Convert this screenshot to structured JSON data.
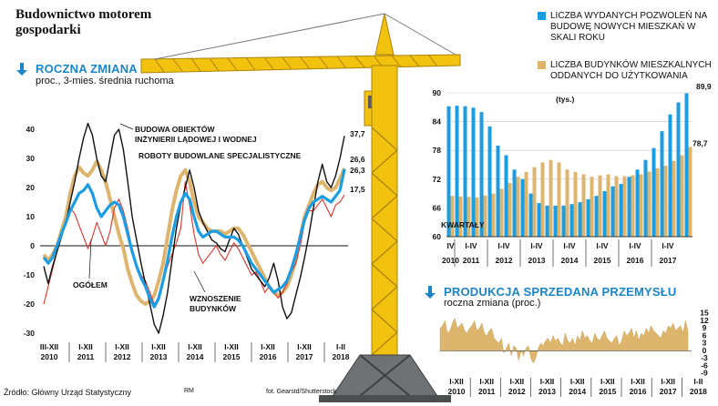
{
  "headline": "Budownictwo motorem gospodarki",
  "source": "Źródło: Główny Urząd Statystyczny",
  "author": "RM",
  "photo_credit": "fot. Gearstd/Shutterstock",
  "colors": {
    "blue": "#1b9de3",
    "gold": "#ddb56d",
    "red": "#e0322d",
    "black": "#111111",
    "accent_title": "#1a86c7"
  },
  "chart_data": [
    {
      "id": "roczna-zmiana",
      "type": "line",
      "title": "ROCZNA ZMIANA",
      "subtitle": "proc., 3-mies. średnia ruchoma",
      "ylim": [
        -30,
        45
      ],
      "y_ticks": [
        "40",
        "30",
        "20",
        "10",
        "0",
        "-10",
        "-20",
        "-30"
      ],
      "x_tick_groups": [
        {
          "range": "III-XII",
          "year": "2010"
        },
        {
          "range": "I-XII",
          "year": "2011"
        },
        {
          "range": "I-XII",
          "year": "2012"
        },
        {
          "range": "I-XII",
          "year": "2013"
        },
        {
          "range": "I-XII",
          "year": "2014"
        },
        {
          "range": "I-XII",
          "year": "2015"
        },
        {
          "range": "I-XII",
          "year": "2016"
        },
        {
          "range": "I-XII",
          "year": "2017"
        },
        {
          "range": "I-II",
          "year": "2018"
        }
      ],
      "series": [
        {
          "name": "BUDOWA OBIEKTÓW INŻYNIERII LĄDOWEJ I WODNEJ",
          "end_label": "37,7",
          "values": [
            -7,
            -13,
            -7,
            -2,
            3,
            8,
            15,
            22,
            30,
            37,
            42,
            38,
            30,
            24,
            22,
            30,
            38,
            40,
            33,
            22,
            10,
            2,
            -6,
            -13,
            -20,
            -27,
            -30,
            -24,
            -16,
            -5,
            6,
            14,
            20,
            26,
            20,
            12,
            8,
            5,
            2,
            1,
            -1,
            -2,
            2,
            6,
            4,
            0,
            -4,
            -8,
            -10,
            -12,
            -14,
            -11,
            -6,
            -12,
            -21,
            -25,
            -23,
            -17,
            -11,
            -4,
            4,
            13,
            22,
            28,
            22,
            20,
            24,
            30,
            37.7
          ]
        },
        {
          "name": "ROBOTY BUDOWLANE SPECJALISTYCZNE",
          "end_label": "26,6",
          "values": [
            -3,
            -5,
            -3,
            0,
            5,
            10,
            18,
            24,
            27,
            25,
            24,
            26,
            29,
            26,
            22,
            16,
            10,
            4,
            -1,
            -8,
            -13,
            -17,
            -19,
            -20,
            -19,
            -17,
            -12,
            -6,
            3,
            12,
            19,
            24,
            26,
            22,
            15,
            10,
            8,
            6,
            5,
            5,
            5,
            4,
            5,
            6,
            6,
            4,
            1,
            -2,
            -5,
            -8,
            -11,
            -14,
            -16,
            -17,
            -16,
            -14,
            -10,
            -5,
            3,
            10,
            14,
            18,
            21,
            22,
            20,
            19,
            20,
            23,
            26.6
          ]
        },
        {
          "name": "OGÓŁEM",
          "end_label": "26,3",
          "values": [
            -4,
            -6,
            -4,
            0,
            4,
            8,
            12,
            15,
            18,
            19,
            21,
            18,
            13,
            10,
            12,
            14,
            15,
            14,
            10,
            4,
            -2,
            -7,
            -11,
            -14,
            -18,
            -21,
            -18,
            -12,
            -5,
            3,
            10,
            15,
            18,
            16,
            10,
            5,
            3,
            4,
            5,
            5,
            4,
            3,
            3,
            3,
            2,
            0,
            -3,
            -6,
            -8,
            -10,
            -12,
            -14,
            -16,
            -15,
            -14,
            -12,
            -8,
            -3,
            3,
            9,
            13,
            15,
            16,
            17,
            16,
            15,
            17,
            19,
            26.3
          ]
        },
        {
          "name": "WZNOSZENIE BUDYNKÓW",
          "end_label": "17,5",
          "values": [
            -20,
            -14,
            -8,
            -2,
            3,
            9,
            13,
            11,
            7,
            3,
            -1,
            3,
            8,
            4,
            0,
            5,
            13,
            16,
            12,
            6,
            -1,
            -7,
            -10,
            -12,
            -16,
            -20,
            -18,
            -12,
            -7,
            -3,
            1,
            6,
            22,
            14,
            4,
            -3,
            -6,
            -4,
            -2,
            0,
            -3,
            -5,
            -2,
            1,
            -1,
            -4,
            -7,
            -10,
            -9,
            -12,
            -16,
            -14,
            -16,
            -18,
            -16,
            -13,
            -9,
            -6,
            0,
            8,
            12,
            12,
            14,
            16,
            13,
            10,
            14,
            15,
            17.5
          ]
        }
      ]
    },
    {
      "id": "pozwolenia-oddania",
      "type": "bar",
      "y_unit": "(tys.)",
      "ylim": [
        60,
        90
      ],
      "y_ticks": [
        "90",
        "84",
        "78",
        "72",
        "66",
        "60"
      ],
      "x_label_header": "KWARTAŁY",
      "x_tick_groups": [
        {
          "range": "IV",
          "year": "2010"
        },
        {
          "range": "I-IV",
          "year": "2011"
        },
        {
          "range": "I-IV",
          "year": "2012"
        },
        {
          "range": "I-IV",
          "year": "2013"
        },
        {
          "range": "I-IV",
          "year": "2014"
        },
        {
          "range": "I-IV",
          "year": "2015"
        },
        {
          "range": "I-IV",
          "year": "2016"
        },
        {
          "range": "I-IV",
          "year": "2017"
        }
      ],
      "series": [
        {
          "name": "LICZBA WYDANYCH POZWOLEŃ NA BUDOWĘ NOWYCH MIESZKAŃ W SKALI ROKU",
          "end_label": "89,9",
          "values": [
            87.2,
            87.3,
            87.2,
            86.9,
            86.0,
            83.0,
            79.0,
            77.0,
            74.0,
            72.0,
            69.0,
            67.0,
            66.5,
            66.5,
            66.5,
            66.8,
            67.2,
            67.8,
            68.5,
            69.5,
            70.5,
            71.0,
            72.5,
            74.0,
            76.0,
            78.5,
            82.0,
            85.5,
            88.0,
            89.9
          ]
        },
        {
          "name": "LICZBA BUDYNKÓW MIESZKALNYCH ODDANYCH DO UŻYTKOWANIA",
          "end_label": "78,7",
          "values": [
            68.5,
            68.4,
            68.3,
            68.2,
            68.6,
            69.0,
            70.0,
            71.2,
            72.5,
            73.5,
            74.5,
            75.5,
            76.0,
            75.5,
            74.0,
            73.5,
            73.0,
            72.5,
            72.8,
            73.0,
            72.6,
            72.6,
            72.8,
            73.0,
            73.6,
            74.3,
            74.8,
            75.8,
            77.0,
            78.7
          ]
        }
      ]
    },
    {
      "id": "produkcja-sprzedana",
      "type": "area",
      "title": "PRODUKCJA SPRZEDANA PRZEMYSŁU",
      "subtitle": "roczna zmiana (proc.)",
      "ylim": [
        -9,
        15
      ],
      "y_ticks": [
        "15",
        "12",
        "9",
        "6",
        "3",
        "0",
        "-3",
        "-6",
        "-9"
      ],
      "x_tick_groups": [
        {
          "range": "I-XII",
          "year": "2010"
        },
        {
          "range": "I-XII",
          "year": "2011"
        },
        {
          "range": "I-XII",
          "year": "2012"
        },
        {
          "range": "I-XII",
          "year": "2013"
        },
        {
          "range": "I-XII",
          "year": "2014"
        },
        {
          "range": "I-XII",
          "year": "2015"
        },
        {
          "range": "I-XII",
          "year": "2016"
        },
        {
          "range": "I-XII",
          "year": "2017"
        },
        {
          "range": "I-II",
          "year": "2018"
        }
      ],
      "values": [
        9,
        10,
        12,
        7,
        8,
        11,
        13,
        9,
        10,
        11,
        8,
        7,
        9,
        10,
        12,
        8,
        9,
        11,
        7,
        6,
        8,
        9,
        5,
        4,
        3,
        5,
        -1,
        1,
        3,
        -2,
        2,
        1,
        -4,
        0,
        -2,
        1,
        2,
        -3,
        -5,
        -3,
        1,
        3,
        2,
        4,
        5,
        3,
        6,
        4,
        5,
        3,
        2,
        7,
        4,
        3,
        5,
        2,
        6,
        4,
        8,
        5,
        6,
        4,
        3,
        7,
        5,
        4,
        6,
        8,
        5,
        4,
        3,
        5,
        6,
        2,
        4,
        8,
        6,
        7,
        9,
        5,
        8,
        4,
        7,
        6,
        9,
        7,
        10,
        8,
        7,
        6,
        5,
        8,
        7,
        10,
        9,
        11,
        8,
        9,
        10,
        7,
        12,
        8
      ]
    }
  ]
}
